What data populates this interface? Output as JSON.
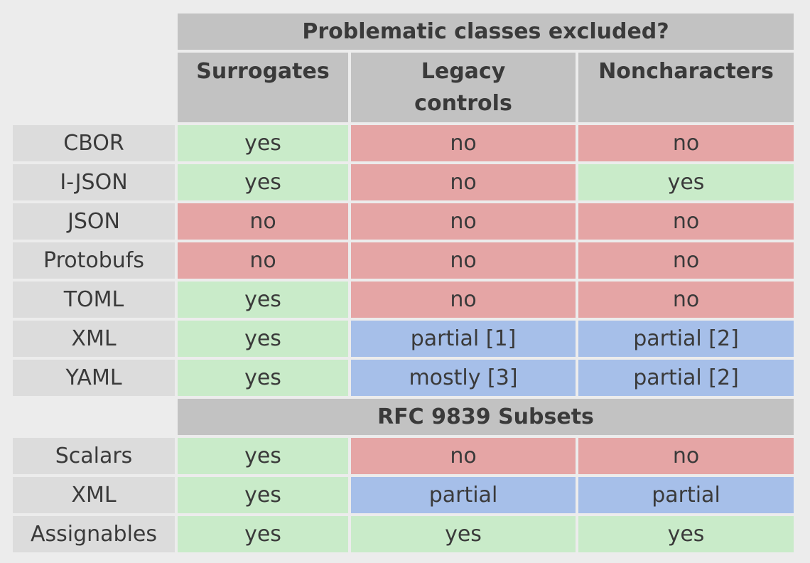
{
  "title": "Problematic classes excluded?",
  "columns": [
    "Surrogates",
    "Legacy controls",
    "Noncharacters"
  ],
  "formats": [
    {
      "name": "CBOR",
      "values": [
        "yes",
        "no",
        "no"
      ]
    },
    {
      "name": "I-JSON",
      "values": [
        "yes",
        "no",
        "yes"
      ]
    },
    {
      "name": "JSON",
      "values": [
        "no",
        "no",
        "no"
      ]
    },
    {
      "name": "Protobufs",
      "values": [
        "no",
        "no",
        "no"
      ]
    },
    {
      "name": "TOML",
      "values": [
        "yes",
        "no",
        "no"
      ]
    },
    {
      "name": "XML",
      "values": [
        "yes",
        "partial [1]",
        "partial [2]"
      ]
    },
    {
      "name": "YAML",
      "values": [
        "yes",
        "mostly [3]",
        "partial [2]"
      ]
    }
  ],
  "subsets_title": "RFC 9839 Subsets",
  "subsets": [
    {
      "name": "Scalars",
      "values": [
        "yes",
        "no",
        "no"
      ]
    },
    {
      "name": "XML",
      "values": [
        "yes",
        "partial",
        "partial"
      ]
    },
    {
      "name": "Assignables",
      "values": [
        "yes",
        "yes",
        "yes"
      ]
    }
  ],
  "colors": {
    "yes": "#c9ebc9",
    "no": "#e5a5a5",
    "partial": "#a6bfe9",
    "header": "#c2c2c2",
    "row_label": "#dcdcdc"
  }
}
